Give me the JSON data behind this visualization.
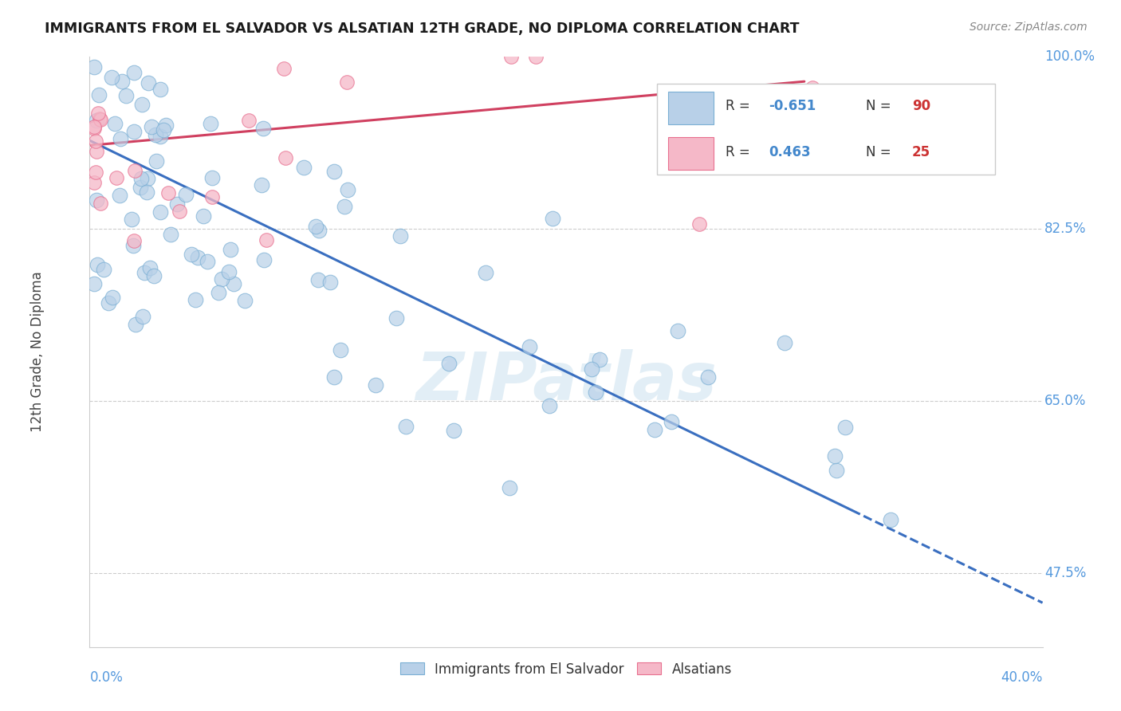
{
  "title": "IMMIGRANTS FROM EL SALVADOR VS ALSATIAN 12TH GRADE, NO DIPLOMA CORRELATION CHART",
  "source": "Source: ZipAtlas.com",
  "ylabel": "12th Grade, No Diploma",
  "xmin": 0.0,
  "xmax": 40.0,
  "ymin": 40.0,
  "ymax": 100.0,
  "blue_color": "#b8d0e8",
  "blue_edge_color": "#7aafd4",
  "pink_color": "#f5b8c8",
  "pink_edge_color": "#e87090",
  "blue_line_color": "#3a6fc0",
  "pink_line_color": "#d04060",
  "label_blue": "Immigrants from El Salvador",
  "label_pink": "Alsatians",
  "watermark": "ZIPatlas",
  "blue_line_x0": 0.0,
  "blue_line_y0": 91.5,
  "blue_line_x1": 40.0,
  "blue_line_y1": 44.5,
  "blue_solid_xmax": 32.0,
  "pink_line_x0": 0.0,
  "pink_line_y0": 91.0,
  "pink_line_x1": 30.0,
  "pink_line_y1": 97.5
}
